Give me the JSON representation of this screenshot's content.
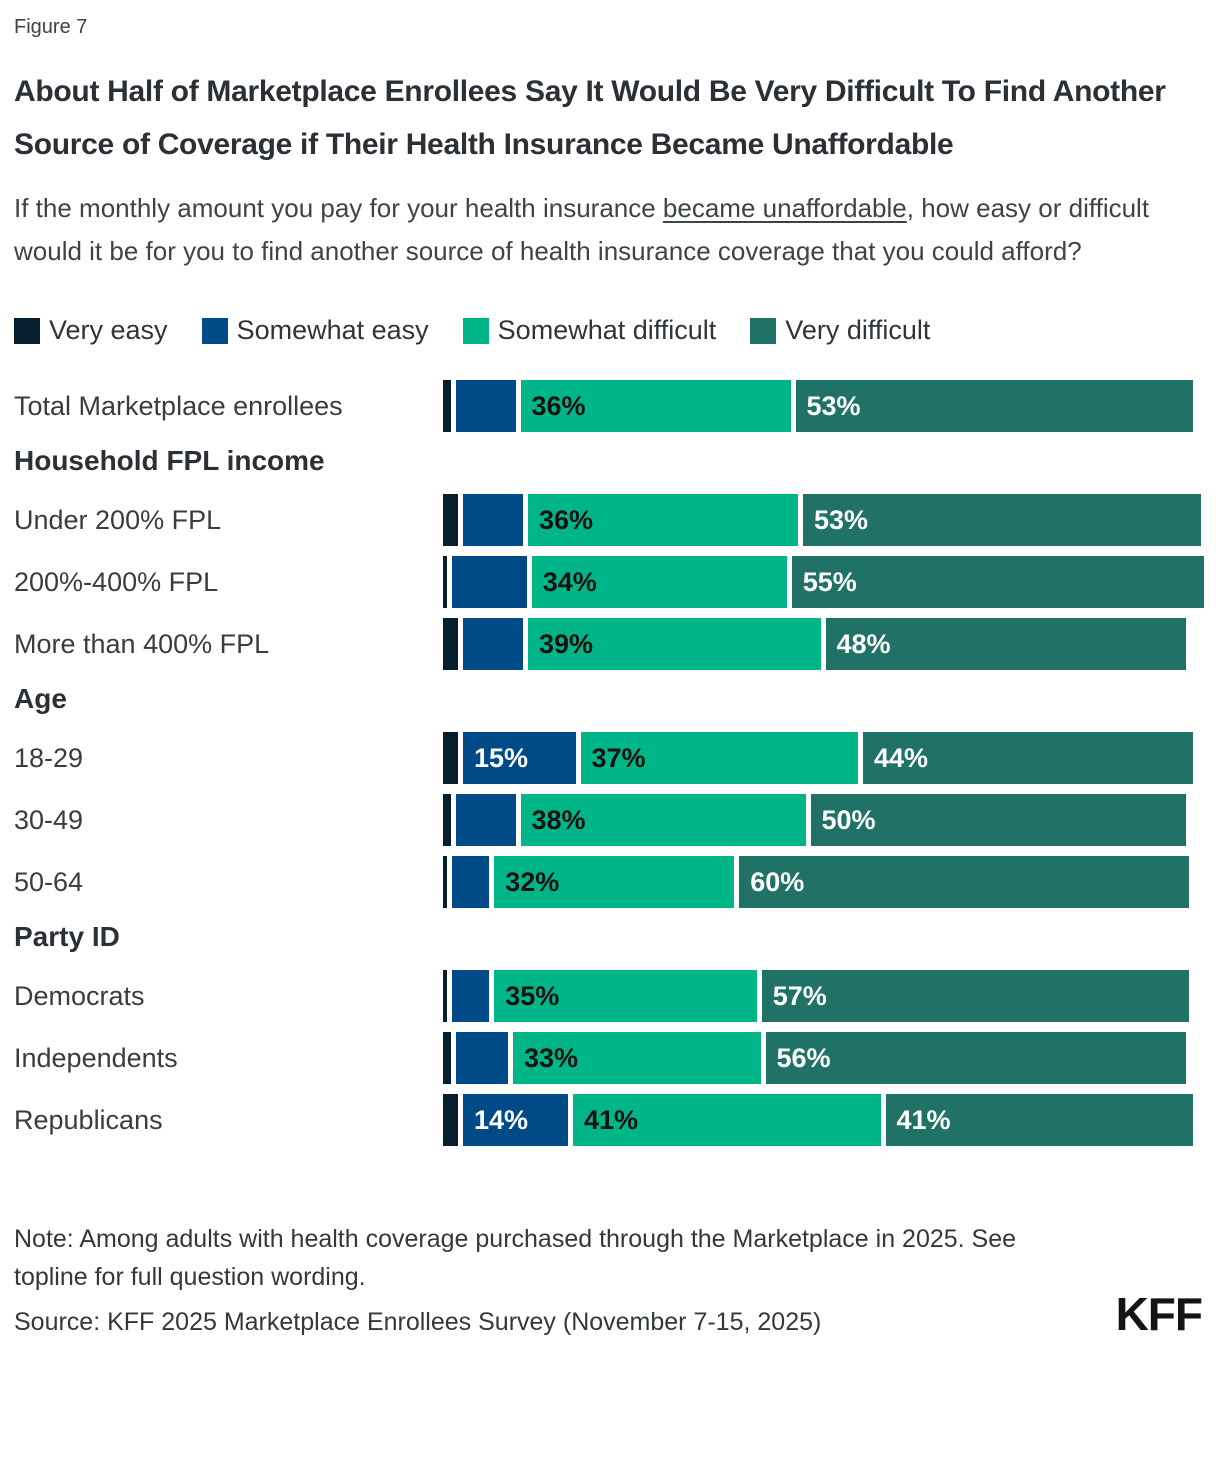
{
  "figure_label": "Figure 7",
  "title": "About Half of Marketplace Enrollees Say It Would Be Very Difficult To Find Another Source of Coverage if Their Health Insurance Became Unaffordable",
  "subtitle": {
    "pre": "If the monthly amount you pay for your health insurance ",
    "underline": "became unaffordable",
    "post": ", how easy or difficult would it be for you to find another source of health insurance coverage that you could afford?"
  },
  "colors": {
    "very_easy": "#051f2f",
    "somewhat_easy": "#004a87",
    "somewhat_difficult": "#00b689",
    "very_difficult": "#1f7265",
    "value_label_dark": "#111111",
    "value_label_light": "#ffffff"
  },
  "legend": {
    "items": [
      {
        "key": "very_easy",
        "label": "Very easy"
      },
      {
        "key": "somewhat_easy",
        "label": "Somewhat easy"
      },
      {
        "key": "somewhat_difficult",
        "label": "Somewhat difficult"
      },
      {
        "key": "very_difficult",
        "label": "Very difficult"
      }
    ]
  },
  "chart_data": {
    "type": "bar",
    "orientation": "horizontal_stacked",
    "unit": "percent",
    "axis_range": [
      0,
      100
    ],
    "grid": false,
    "legend_position": "top",
    "series_keys": [
      "very_easy",
      "somewhat_easy",
      "somewhat_difficult",
      "very_difficult"
    ],
    "series_names": [
      "Very easy",
      "Somewhat easy",
      "Somewhat difficult",
      "Very difficult"
    ],
    "rows": [
      {
        "type": "bar",
        "label": "Total Marketplace enrollees",
        "values": [
          1,
          8,
          36,
          53
        ],
        "labels": [
          "",
          "",
          "36%",
          "53%"
        ]
      },
      {
        "type": "header",
        "label": "Household FPL income"
      },
      {
        "type": "bar",
        "label": "Under 200% FPL",
        "values": [
          2,
          8,
          36,
          53
        ],
        "labels": [
          "",
          "",
          "36%",
          "53%"
        ]
      },
      {
        "type": "bar",
        "label": "200%-400% FPL",
        "values": [
          0.5,
          10,
          34,
          55
        ],
        "labels": [
          "",
          "",
          "34%",
          "55%"
        ]
      },
      {
        "type": "bar",
        "label": "More than 400% FPL",
        "values": [
          2,
          8,
          39,
          48
        ],
        "labels": [
          "",
          "",
          "39%",
          "48%"
        ]
      },
      {
        "type": "header",
        "label": "Age"
      },
      {
        "type": "bar",
        "label": "18-29",
        "values": [
          2,
          15,
          37,
          44
        ],
        "labels": [
          "",
          "15%",
          "37%",
          "44%"
        ]
      },
      {
        "type": "bar",
        "label": "30-49",
        "values": [
          1,
          8,
          38,
          50
        ],
        "labels": [
          "",
          "",
          "38%",
          "50%"
        ]
      },
      {
        "type": "bar",
        "label": "50-64",
        "values": [
          0.5,
          5,
          32,
          60
        ],
        "labels": [
          "",
          "",
          "32%",
          "60%"
        ]
      },
      {
        "type": "header",
        "label": "Party ID"
      },
      {
        "type": "bar",
        "label": "Democrats",
        "values": [
          0.5,
          5,
          35,
          57
        ],
        "labels": [
          "",
          "",
          "35%",
          "57%"
        ]
      },
      {
        "type": "bar",
        "label": "Independents",
        "values": [
          1,
          7,
          33,
          56
        ],
        "labels": [
          "",
          "",
          "33%",
          "56%"
        ]
      },
      {
        "type": "bar",
        "label": "Republicans",
        "values": [
          2,
          14,
          41,
          41
        ],
        "labels": [
          "",
          "14%",
          "41%",
          "41%"
        ]
      }
    ]
  },
  "footer": {
    "note": "Note: Among adults with health coverage purchased through the Marketplace in 2025. See topline for full question wording.",
    "source": "Source: KFF 2025 Marketplace Enrollees Survey (November 7-15, 2025)",
    "logo": "KFF"
  }
}
